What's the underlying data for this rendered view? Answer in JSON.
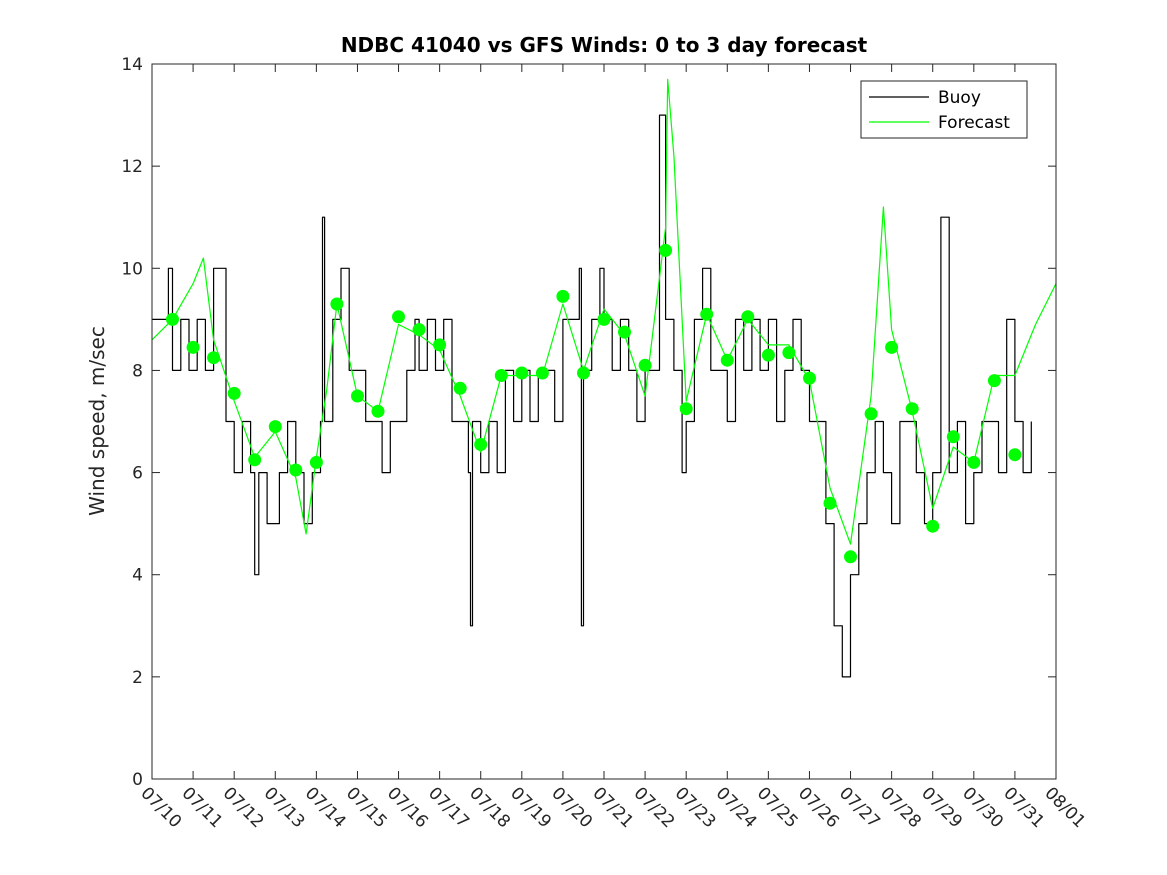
{
  "chart_data": {
    "type": "line",
    "title": "NDBC 41040 vs GFS Winds: 0 to 3 day forecast",
    "xlabel": "",
    "ylabel": "Wind speed, m/sec",
    "ylim": [
      0,
      14
    ],
    "yticks": [
      0,
      2,
      4,
      6,
      8,
      10,
      12,
      14
    ],
    "xlim": [
      0,
      22
    ],
    "xtick_labels": [
      "07/10",
      "07/11",
      "07/12",
      "07/13",
      "07/14",
      "07/15",
      "07/16",
      "07/17",
      "07/18",
      "07/19",
      "07/20",
      "07/21",
      "07/22",
      "07/23",
      "07/24",
      "07/25",
      "07/26",
      "07/27",
      "07/28",
      "07/29",
      "07/30",
      "07/31",
      "08/01"
    ],
    "grid": false,
    "legend": {
      "position": "top-right",
      "entries": [
        "Buoy",
        "Forecast"
      ]
    },
    "colors": {
      "buoy": "#000000",
      "forecast": "#00ff00"
    },
    "series": [
      {
        "name": "Buoy",
        "style": "line",
        "x": [
          0,
          0.2,
          0.4,
          0.5,
          0.7,
          0.9,
          1.1,
          1.3,
          1.5,
          1.8,
          2.0,
          2.2,
          2.4,
          2.5,
          2.6,
          2.8,
          3.0,
          3.1,
          3.3,
          3.5,
          3.7,
          3.9,
          4.1,
          4.15,
          4.2,
          4.4,
          4.6,
          4.8,
          5.0,
          5.2,
          5.4,
          5.6,
          5.8,
          6.0,
          6.2,
          6.4,
          6.5,
          6.7,
          6.9,
          7.1,
          7.3,
          7.5,
          7.7,
          7.75,
          7.8,
          8.0,
          8.2,
          8.4,
          8.6,
          8.8,
          9.0,
          9.2,
          9.4,
          9.6,
          9.8,
          10.0,
          10.2,
          10.4,
          10.45,
          10.5,
          10.7,
          10.9,
          11.0,
          11.2,
          11.4,
          11.6,
          11.8,
          12.0,
          12.2,
          12.35,
          12.5,
          12.7,
          12.9,
          13.0,
          13.2,
          13.4,
          13.6,
          13.8,
          14.0,
          14.2,
          14.4,
          14.6,
          14.8,
          15.0,
          15.2,
          15.4,
          15.6,
          15.8,
          16.0,
          16.2,
          16.4,
          16.6,
          16.8,
          17.0,
          17.2,
          17.4,
          17.6,
          17.8,
          18.0,
          18.2,
          18.4,
          18.6,
          18.8,
          19.0,
          19.2,
          19.4,
          19.6,
          19.8,
          20.0,
          20.2,
          20.4,
          20.6,
          20.8,
          21.0,
          21.2,
          21.4
        ],
        "y": [
          9,
          9,
          10,
          8,
          9,
          8,
          9,
          8,
          10,
          7,
          6,
          7,
          6,
          4,
          6,
          5,
          5,
          6,
          7,
          6,
          5,
          6,
          7,
          11,
          7,
          9,
          10,
          8,
          8,
          7,
          7,
          6,
          7,
          7,
          8,
          9,
          8,
          9,
          8,
          9,
          7,
          7,
          6,
          3,
          7,
          6,
          7,
          6,
          8,
          7,
          8,
          7,
          8,
          8,
          7,
          9,
          9,
          10,
          3,
          8,
          9,
          10,
          9,
          8,
          9,
          8,
          7,
          8,
          8,
          13,
          9,
          8,
          6,
          7,
          9,
          10,
          8,
          8,
          7,
          9,
          8,
          9,
          8,
          9,
          7,
          8,
          9,
          8,
          7,
          7,
          5,
          3,
          2,
          4,
          5,
          6,
          7,
          6,
          5,
          7,
          7,
          6,
          5,
          6,
          11,
          6,
          7,
          5,
          6,
          7,
          7,
          6,
          9,
          7,
          6,
          7
        ],
        "values_approximate": true
      },
      {
        "name": "Forecast",
        "style": "line",
        "x": [
          0,
          0.5,
          1.0,
          1.25,
          1.5,
          2.0,
          2.5,
          3.0,
          3.5,
          3.75,
          4.0,
          4.25,
          4.5,
          5.0,
          5.5,
          6.0,
          6.5,
          7.0,
          7.5,
          8.0,
          8.5,
          9.0,
          9.5,
          10.0,
          10.5,
          11.0,
          11.5,
          12.0,
          12.5,
          12.55,
          12.7,
          13.0,
          13.5,
          14.0,
          14.5,
          15.0,
          15.5,
          16.0,
          16.5,
          17.0,
          17.5,
          17.8,
          18.0,
          18.5,
          19.0,
          19.5,
          20.0,
          20.5,
          21.0,
          21.5,
          22.0
        ],
        "y": [
          8.6,
          9.0,
          9.7,
          10.2,
          8.6,
          7.4,
          6.3,
          6.8,
          5.9,
          4.8,
          6.3,
          7.6,
          9.3,
          7.5,
          7.2,
          8.9,
          8.7,
          8.4,
          7.5,
          6.4,
          7.9,
          7.9,
          7.9,
          9.3,
          8.0,
          9.2,
          8.7,
          7.5,
          10.8,
          13.7,
          12.2,
          7.4,
          9.1,
          8.2,
          9.0,
          8.5,
          8.5,
          7.8,
          5.7,
          4.6,
          7.5,
          11.2,
          8.8,
          7.2,
          5.3,
          6.5,
          6.2,
          7.9,
          7.9,
          8.9,
          9.7
        ],
        "values_approximate": true
      },
      {
        "name": "",
        "style": "markers",
        "x": [
          0.5,
          1.0,
          1.5,
          2.0,
          2.5,
          3.0,
          3.5,
          4.0,
          4.5,
          5.0,
          5.5,
          6.0,
          6.5,
          7.0,
          7.5,
          8.0,
          8.5,
          9.0,
          9.5,
          10.0,
          10.5,
          11.0,
          11.5,
          12.0,
          12.5,
          13.0,
          13.5,
          14.0,
          14.5,
          15.0,
          15.5,
          16.0,
          16.5,
          17.0,
          17.5,
          18.0,
          18.5,
          19.0,
          19.5,
          20.0,
          20.5,
          21.0
        ],
        "y": [
          9.0,
          8.45,
          8.25,
          7.55,
          6.25,
          6.9,
          6.05,
          6.2,
          9.3,
          7.5,
          7.2,
          9.05,
          8.8,
          8.5,
          7.65,
          6.55,
          7.9,
          7.95,
          7.95,
          9.45,
          7.95,
          9.0,
          8.75,
          8.1,
          10.35,
          7.25,
          9.1,
          8.2,
          9.05,
          8.3,
          8.35,
          7.85,
          5.4,
          4.35,
          7.15,
          8.45,
          7.25,
          4.95,
          6.7,
          6.2,
          7.8,
          6.35
        ]
      }
    ]
  }
}
